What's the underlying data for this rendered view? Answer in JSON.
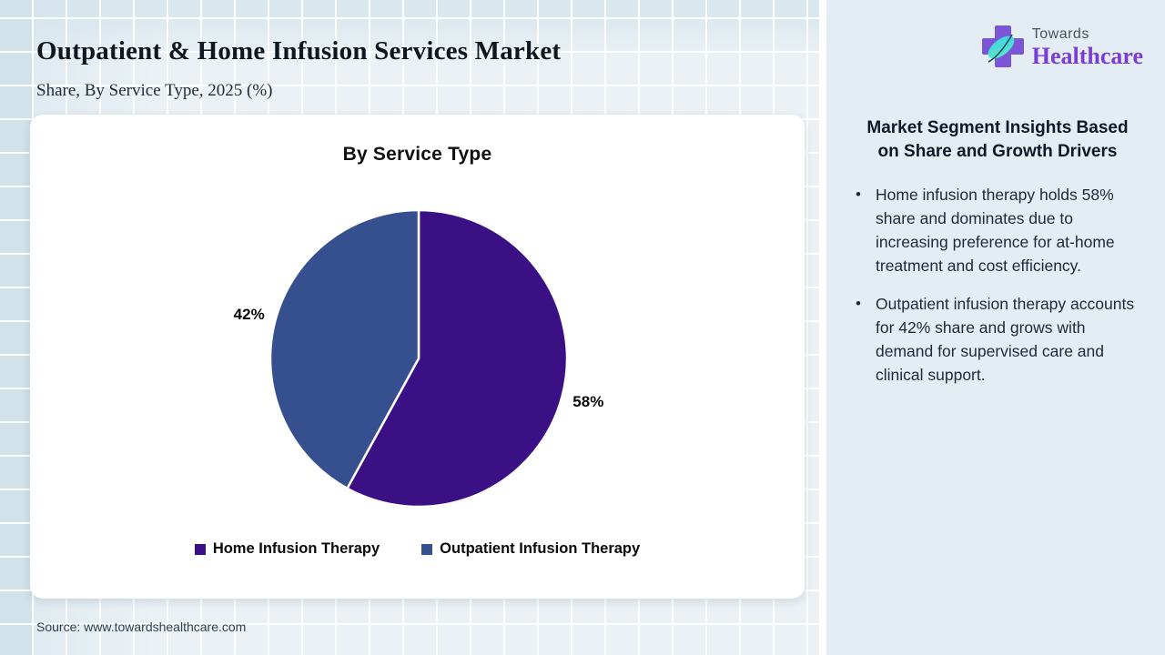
{
  "header": {
    "title": "Outpatient & Home Infusion Services Market",
    "subtitle": "Share, By Service Type, 2025 (%)"
  },
  "logo": {
    "word_top": "Towards",
    "word_bottom": "Healthcare"
  },
  "chart_data": {
    "type": "pie",
    "title": "By Service Type",
    "unit": "%",
    "start": "top",
    "direction": "clockwise",
    "legend_position": "bottom",
    "slice_border_color": "#ffffff",
    "slices": [
      {
        "label": "Home Infusion Therapy",
        "value": 58,
        "display": "58%",
        "color": "#3b1084"
      },
      {
        "label": "Outpatient Infusion Therapy",
        "value": 42,
        "display": "42%",
        "color": "#36508f"
      }
    ]
  },
  "insights": {
    "heading": "Market Segment Insights Based on Share and Growth Drivers",
    "bullets": [
      "Home infusion therapy holds 58% share and dominates due to increasing preference for at-home treatment and cost efficiency.",
      "Outpatient infusion therapy accounts for 42% share and grows with demand for supervised care and clinical support."
    ]
  },
  "footer": {
    "source": "Source: www.towardshealthcare.com"
  },
  "colors": {
    "home_infusion": "#3b1084",
    "outpatient_infusion": "#36508f",
    "panel_background": "#e4edf3",
    "logo_purple": "#7b3ed2",
    "logo_cross": "#7a55d6",
    "logo_leaf_start": "#5ce8c2",
    "logo_leaf_end": "#3fd0e8"
  }
}
